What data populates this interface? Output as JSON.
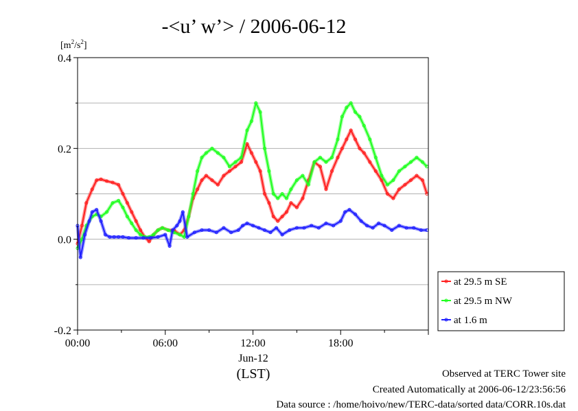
{
  "chart_data": {
    "type": "line",
    "title": "-<u’ w’> / 2006-06-12",
    "ylabel_parts": {
      "base": "[m",
      "exp1": "2",
      "mid": "/s",
      "exp2": "2",
      "end": "]"
    },
    "x_unit": "hours",
    "xlim": [
      0,
      24
    ],
    "ylim": [
      -0.2,
      0.4
    ],
    "y_ticks": [
      "-0.2",
      "0.0",
      "0.2",
      "0.4"
    ],
    "y_tick_values": [
      -0.2,
      0.0,
      0.2,
      0.4
    ],
    "x_ticks": [
      "00:00",
      "06:00",
      "12:00",
      "18:00"
    ],
    "x_tick_values": [
      0,
      6,
      12,
      18
    ],
    "date_label": "Jun-12",
    "timezone_label": "(LST)",
    "grid": true,
    "legend_position": "right",
    "series": [
      {
        "name": "at 29.5 m SE",
        "color": "#ff2020",
        "x": [
          0,
          0.3,
          0.6,
          1.0,
          1.3,
          1.6,
          2.0,
          2.4,
          2.8,
          3.1,
          3.4,
          3.7,
          4.0,
          4.3,
          4.6,
          4.9,
          5.2,
          5.5,
          5.8,
          6.2,
          6.6,
          7.0,
          7.3,
          7.6,
          7.9,
          8.2,
          8.5,
          8.8,
          9.2,
          9.6,
          10.0,
          10.4,
          10.8,
          11.2,
          11.6,
          11.9,
          12.2,
          12.5,
          12.8,
          13.1,
          13.4,
          13.7,
          14.0,
          14.3,
          14.6,
          15.0,
          15.4,
          15.8,
          16.2,
          16.6,
          17.0,
          17.4,
          17.8,
          18.1,
          18.4,
          18.7,
          19.0,
          19.3,
          19.6,
          20.0,
          20.4,
          20.8,
          21.2,
          21.6,
          22.0,
          22.4,
          22.8,
          23.2,
          23.6,
          23.9
        ],
        "y": [
          -0.01,
          0.03,
          0.08,
          0.11,
          0.13,
          0.132,
          0.128,
          0.125,
          0.12,
          0.1,
          0.08,
          0.06,
          0.04,
          0.02,
          0.005,
          -0.005,
          0.01,
          0.02,
          0.025,
          0.02,
          0.02,
          0.01,
          0.02,
          0.05,
          0.09,
          0.11,
          0.13,
          0.14,
          0.13,
          0.12,
          0.14,
          0.15,
          0.16,
          0.17,
          0.21,
          0.19,
          0.17,
          0.15,
          0.1,
          0.08,
          0.05,
          0.04,
          0.05,
          0.06,
          0.08,
          0.07,
          0.09,
          0.13,
          0.17,
          0.16,
          0.11,
          0.15,
          0.18,
          0.2,
          0.22,
          0.24,
          0.22,
          0.2,
          0.19,
          0.17,
          0.15,
          0.13,
          0.1,
          0.09,
          0.11,
          0.12,
          0.13,
          0.14,
          0.13,
          0.1
        ]
      },
      {
        "name": "at 29.5 m NW",
        "color": "#20ff20",
        "x": [
          0,
          0.3,
          0.6,
          1.0,
          1.3,
          1.6,
          2.0,
          2.4,
          2.8,
          3.1,
          3.4,
          3.7,
          4.0,
          4.3,
          4.6,
          4.9,
          5.2,
          5.5,
          5.8,
          6.2,
          6.6,
          7.0,
          7.3,
          7.6,
          7.9,
          8.2,
          8.5,
          8.8,
          9.2,
          9.6,
          10.0,
          10.4,
          10.8,
          11.2,
          11.6,
          11.9,
          12.2,
          12.5,
          12.8,
          13.1,
          13.4,
          13.7,
          14.0,
          14.3,
          14.6,
          15.0,
          15.4,
          15.8,
          16.2,
          16.6,
          17.0,
          17.4,
          17.8,
          18.1,
          18.4,
          18.7,
          19.0,
          19.3,
          19.6,
          20.0,
          20.4,
          20.8,
          21.2,
          21.6,
          22.0,
          22.4,
          22.8,
          23.2,
          23.6,
          23.9
        ],
        "y": [
          -0.02,
          0.0,
          0.03,
          0.05,
          0.055,
          0.05,
          0.06,
          0.08,
          0.085,
          0.07,
          0.05,
          0.035,
          0.02,
          0.01,
          0.005,
          0.005,
          0.01,
          0.02,
          0.025,
          0.02,
          0.015,
          0.01,
          0.005,
          0.05,
          0.1,
          0.15,
          0.18,
          0.19,
          0.2,
          0.19,
          0.18,
          0.16,
          0.17,
          0.18,
          0.24,
          0.26,
          0.3,
          0.28,
          0.2,
          0.15,
          0.1,
          0.09,
          0.1,
          0.09,
          0.11,
          0.13,
          0.14,
          0.12,
          0.17,
          0.18,
          0.17,
          0.18,
          0.22,
          0.27,
          0.29,
          0.3,
          0.28,
          0.27,
          0.25,
          0.22,
          0.18,
          0.14,
          0.12,
          0.13,
          0.15,
          0.16,
          0.17,
          0.18,
          0.17,
          0.16
        ]
      },
      {
        "name": "at 1.6 m",
        "color": "#2020ff",
        "x": [
          0,
          0.2,
          0.5,
          0.8,
          1.0,
          1.3,
          1.6,
          1.9,
          2.2,
          2.5,
          2.8,
          3.1,
          3.5,
          4.0,
          4.5,
          5.0,
          5.5,
          6.0,
          6.3,
          6.5,
          6.8,
          7.0,
          7.2,
          7.5,
          8.0,
          8.5,
          9.0,
          9.5,
          10.0,
          10.5,
          11.0,
          11.3,
          11.6,
          12.0,
          12.4,
          12.8,
          13.2,
          13.6,
          14.0,
          14.5,
          15.0,
          15.5,
          16.0,
          16.5,
          17.0,
          17.5,
          18.0,
          18.3,
          18.6,
          19.0,
          19.4,
          19.8,
          20.2,
          20.6,
          21.0,
          21.5,
          22.0,
          22.5,
          23.0,
          23.5,
          23.9
        ],
        "y": [
          0.03,
          -0.04,
          0.01,
          0.04,
          0.06,
          0.065,
          0.04,
          0.01,
          0.005,
          0.005,
          0.005,
          0.005,
          0.003,
          0.003,
          0.003,
          0.003,
          0.005,
          0.01,
          -0.015,
          0.02,
          0.03,
          0.04,
          0.06,
          0.005,
          0.015,
          0.02,
          0.02,
          0.015,
          0.025,
          0.015,
          0.02,
          0.03,
          0.035,
          0.03,
          0.025,
          0.02,
          0.015,
          0.025,
          0.01,
          0.02,
          0.025,
          0.025,
          0.03,
          0.025,
          0.035,
          0.03,
          0.04,
          0.06,
          0.065,
          0.055,
          0.04,
          0.03,
          0.025,
          0.035,
          0.03,
          0.02,
          0.03,
          0.025,
          0.025,
          0.02,
          0.02
        ]
      }
    ]
  },
  "footer": {
    "line1": "Observed at TERC Tower site",
    "line2": "Created Automatically at 2006-06-12/23:56:56",
    "line3": "Data source : /home/hoivo/new/TERC-data/sorted  data/CORR.10s.dat"
  }
}
